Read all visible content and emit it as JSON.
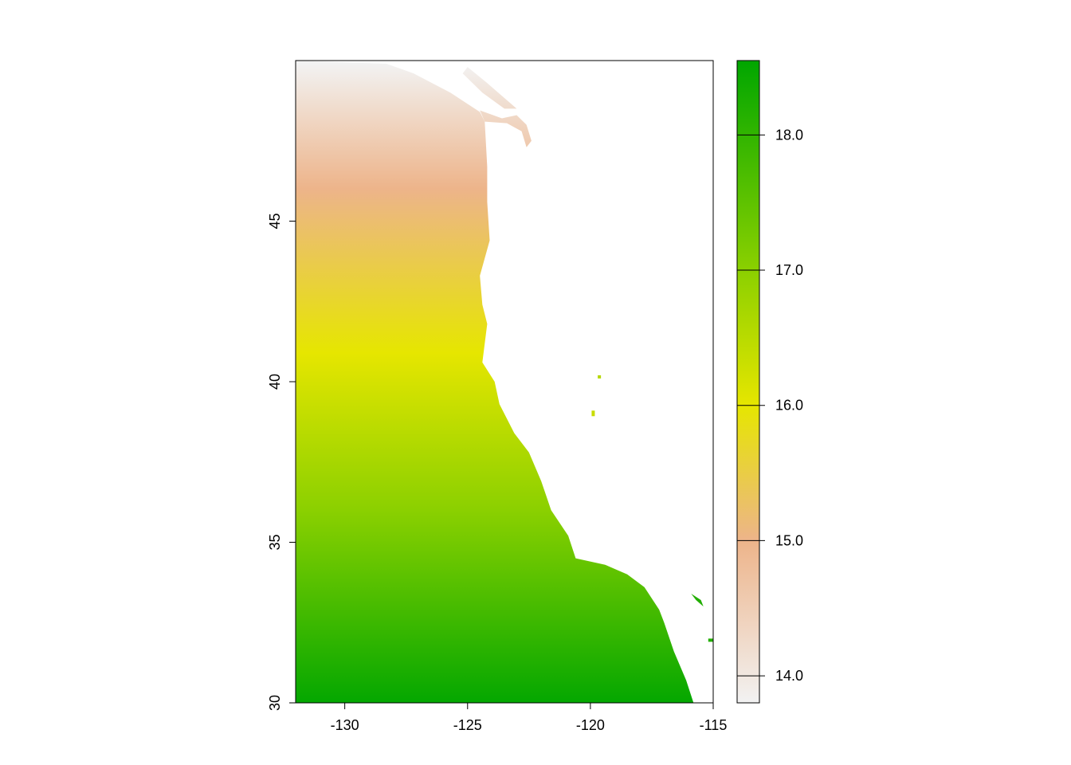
{
  "chart_data": {
    "type": "heatmap",
    "title": "",
    "xlabel": "",
    "ylabel": "",
    "xlim": [
      -132,
      -115
    ],
    "ylim": [
      30,
      50
    ],
    "x_ticks": [
      "-130",
      "-125",
      "-120",
      "-115"
    ],
    "x_tick_values": [
      -130,
      -125,
      -120,
      -115
    ],
    "y_ticks": [
      "30",
      "35",
      "40",
      "45"
    ],
    "y_tick_values": [
      30,
      35,
      40,
      45
    ],
    "value_gradient_by_latitude": [
      {
        "lat": 49.9,
        "value": 13.8
      },
      {
        "lat": 46,
        "value": 15.0
      },
      {
        "lat": 40.9,
        "value": 16.0
      },
      {
        "lat": 36,
        "value": 17.0
      },
      {
        "lat": 30,
        "value": 18.5
      }
    ],
    "coastline": [
      [
        -128.3,
        49.9
      ],
      [
        -127.2,
        49.6
      ],
      [
        -125.7,
        49.0
      ],
      [
        -124.5,
        48.4
      ],
      [
        -124.3,
        48.1
      ],
      [
        -124.2,
        46.7
      ],
      [
        -124.2,
        45.6
      ],
      [
        -124.1,
        44.4
      ],
      [
        -124.5,
        43.3
      ],
      [
        -124.4,
        42.4
      ],
      [
        -124.2,
        41.8
      ],
      [
        -124.4,
        40.6
      ],
      [
        -123.9,
        40.0
      ],
      [
        -123.7,
        39.3
      ],
      [
        -123.1,
        38.4
      ],
      [
        -122.5,
        37.8
      ],
      [
        -122.0,
        36.9
      ],
      [
        -121.6,
        36.0
      ],
      [
        -120.9,
        35.2
      ],
      [
        -120.6,
        34.5
      ],
      [
        -119.4,
        34.3
      ],
      [
        -118.5,
        34.0
      ],
      [
        -117.8,
        33.6
      ],
      [
        -117.2,
        32.9
      ],
      [
        -117.0,
        32.5
      ],
      [
        -116.6,
        31.6
      ],
      [
        -116.1,
        30.7
      ],
      [
        -115.8,
        30.0
      ]
    ],
    "legend": {
      "placement": "right",
      "range": [
        13.8,
        18.55
      ],
      "ticks": [
        "14.0",
        "15.0",
        "16.0",
        "17.0",
        "18.0"
      ],
      "tick_values": [
        14,
        15,
        16,
        17,
        18
      ],
      "colors": [
        {
          "value": 13.8,
          "color": "#f2f2f2"
        },
        {
          "value": 15.0,
          "color": "#edb48a"
        },
        {
          "value": 16.0,
          "color": "#e6e600"
        },
        {
          "value": 17.0,
          "color": "#8bd000"
        },
        {
          "value": 18.55,
          "color": "#00a600"
        }
      ]
    }
  }
}
